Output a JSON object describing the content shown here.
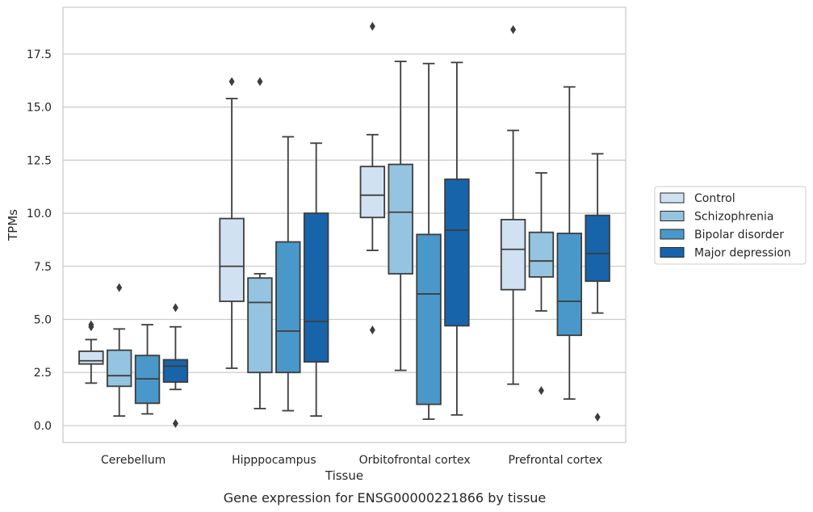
{
  "chart_data": {
    "type": "box",
    "title": "",
    "caption": "Gene expression for ENSG00000221866 by tissue",
    "xlabel": "Tissue",
    "ylabel": "TPMs",
    "ylim": [
      -0.8,
      19.7
    ],
    "yticks": [
      0.0,
      2.5,
      5.0,
      7.5,
      10.0,
      12.5,
      15.0,
      17.5
    ],
    "ytick_labels": [
      "0.0",
      "2.5",
      "5.0",
      "7.5",
      "10.0",
      "12.5",
      "15.0",
      "17.5"
    ],
    "grid": "horizontal",
    "legend_position": "outside-right",
    "categories": [
      "Cerebellum",
      "Hipppocampus",
      "Orbitofrontal cortex",
      "Prefrontal cortex"
    ],
    "series": [
      {
        "name": "Control",
        "color": "#d0e1f2",
        "boxes": [
          {
            "whislo": 2.0,
            "q1": 2.9,
            "med": 3.05,
            "q3": 3.5,
            "whishi": 4.05,
            "fliers": [
              4.65,
              4.75
            ]
          },
          {
            "whislo": 2.7,
            "q1": 5.85,
            "med": 7.5,
            "q3": 9.75,
            "whishi": 15.4,
            "fliers": [
              16.2
            ]
          },
          {
            "whislo": 8.25,
            "q1": 9.8,
            "med": 10.85,
            "q3": 12.2,
            "whishi": 13.7,
            "fliers": [
              4.5,
              18.8
            ]
          },
          {
            "whislo": 1.95,
            "q1": 6.4,
            "med": 8.3,
            "q3": 9.7,
            "whishi": 13.9,
            "fliers": [
              18.65
            ]
          }
        ]
      },
      {
        "name": "Schizophrenia",
        "color": "#94c4df",
        "boxes": [
          {
            "whislo": 0.45,
            "q1": 1.85,
            "med": 2.35,
            "q3": 3.55,
            "whishi": 4.55,
            "fliers": [
              6.5
            ]
          },
          {
            "whislo": 0.8,
            "q1": 2.5,
            "med": 5.8,
            "q3": 6.95,
            "whishi": 7.15,
            "fliers": [
              16.2
            ]
          },
          {
            "whislo": 2.6,
            "q1": 7.15,
            "med": 10.05,
            "q3": 12.3,
            "whishi": 17.15,
            "fliers": []
          },
          {
            "whislo": 5.4,
            "q1": 7.0,
            "med": 7.75,
            "q3": 9.1,
            "whishi": 11.9,
            "fliers": [
              1.65
            ]
          }
        ]
      },
      {
        "name": "Bipolar disorder",
        "color": "#4a98c9",
        "boxes": [
          {
            "whislo": 0.55,
            "q1": 1.05,
            "med": 2.2,
            "q3": 3.3,
            "whishi": 4.75,
            "fliers": []
          },
          {
            "whislo": 0.7,
            "q1": 2.5,
            "med": 4.45,
            "q3": 8.65,
            "whishi": 13.6,
            "fliers": []
          },
          {
            "whislo": 0.3,
            "q1": 1.0,
            "med": 6.2,
            "q3": 9.0,
            "whishi": 17.05,
            "fliers": []
          },
          {
            "whislo": 1.25,
            "q1": 4.25,
            "med": 5.85,
            "q3": 9.05,
            "whishi": 15.95,
            "fliers": []
          }
        ]
      },
      {
        "name": "Major depression",
        "color": "#1764ab",
        "boxes": [
          {
            "whislo": 1.7,
            "q1": 2.05,
            "med": 2.8,
            "q3": 3.1,
            "whishi": 4.65,
            "fliers": [
              0.1,
              5.55
            ]
          },
          {
            "whislo": 0.45,
            "q1": 3.0,
            "med": 4.9,
            "q3": 10.0,
            "whishi": 13.3,
            "fliers": []
          },
          {
            "whislo": 0.5,
            "q1": 4.7,
            "med": 9.2,
            "q3": 11.6,
            "whishi": 17.1,
            "fliers": []
          },
          {
            "whislo": 5.3,
            "q1": 6.8,
            "med": 8.1,
            "q3": 9.9,
            "whishi": 12.8,
            "fliers": [
              0.4
            ]
          }
        ]
      }
    ]
  }
}
